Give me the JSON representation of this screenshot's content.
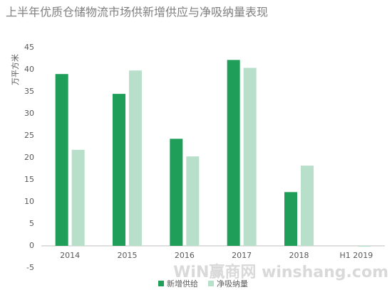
{
  "chart_data": {
    "type": "bar",
    "title": "上半年优质仓储物流市场供新增供应与净吸纳量表现",
    "y_label": "万平方米",
    "categories": [
      "2014",
      "2015",
      "2016",
      "2017",
      "2018",
      "H1 2019"
    ],
    "series": [
      {
        "name": "新增供给",
        "color": "#1f9e5a",
        "values": [
          39,
          34.5,
          24.3,
          42.2,
          12.2,
          0
        ]
      },
      {
        "name": "净吸纳量",
        "color": "#b7dfc9",
        "values": [
          21.8,
          39.8,
          20.3,
          40.4,
          18.2,
          -0.2
        ]
      }
    ],
    "ylim": [
      -5,
      45
    ],
    "yticks": [
      -5,
      0,
      5,
      10,
      15,
      20,
      25,
      30,
      35,
      40,
      45
    ],
    "grid": false,
    "legend": "bottom",
    "watermark": "WiN赢商网 winshang.com"
  }
}
